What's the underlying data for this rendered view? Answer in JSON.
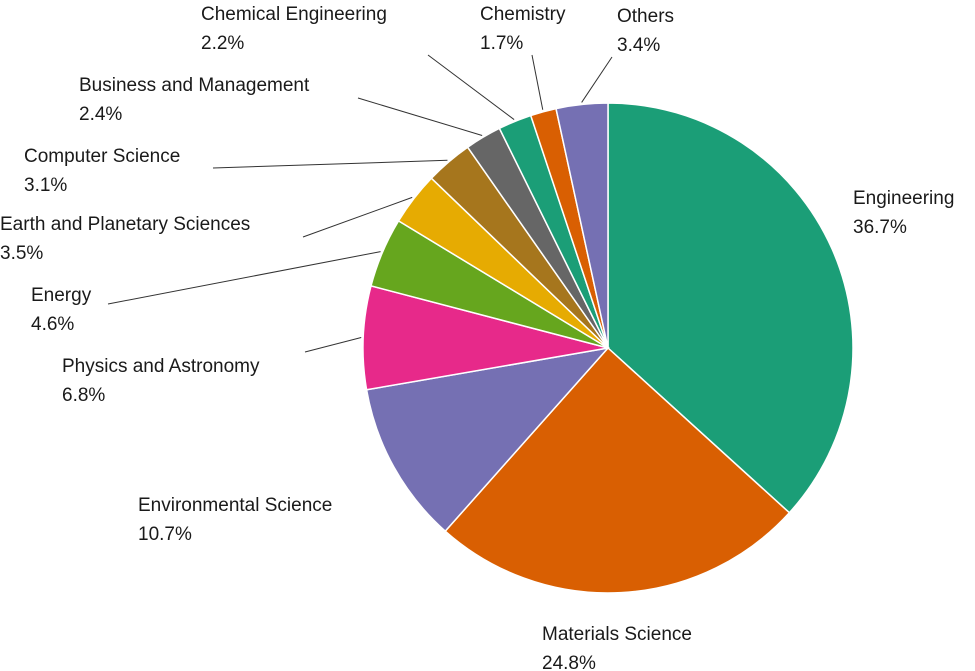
{
  "chart_data": {
    "type": "pie",
    "start_angle_deg": 0,
    "direction": "clockwise",
    "slices": [
      {
        "label": "Engineering",
        "value": 36.7,
        "display": "36.7%",
        "color": "#1b9e77"
      },
      {
        "label": "Materials Science",
        "value": 24.8,
        "display": "24.8%",
        "color": "#d95f02"
      },
      {
        "label": "Environmental Science",
        "value": 10.7,
        "display": "10.7%",
        "color": "#7570b3"
      },
      {
        "label": "Physics and Astronomy",
        "value": 6.8,
        "display": "6.8%",
        "color": "#e7298a"
      },
      {
        "label": "Energy",
        "value": 4.6,
        "display": "4.6%",
        "color": "#66a61e"
      },
      {
        "label": "Earth and Planetary Sciences",
        "value": 3.5,
        "display": "3.5%",
        "color": "#e6ab02"
      },
      {
        "label": "Computer Science",
        "value": 3.1,
        "display": "3.1%",
        "color": "#a6761d"
      },
      {
        "label": "Business and Management",
        "value": 2.4,
        "display": "2.4%",
        "color": "#666666"
      },
      {
        "label": "Chemical Engineering",
        "value": 2.2,
        "display": "2.2%",
        "color": "#1b9e77"
      },
      {
        "label": "Chemistry",
        "value": 1.7,
        "display": "1.7%",
        "color": "#d95f02"
      },
      {
        "label": "Others",
        "value": 3.4,
        "display": "3.4%",
        "color": "#7570b3"
      }
    ]
  }
}
